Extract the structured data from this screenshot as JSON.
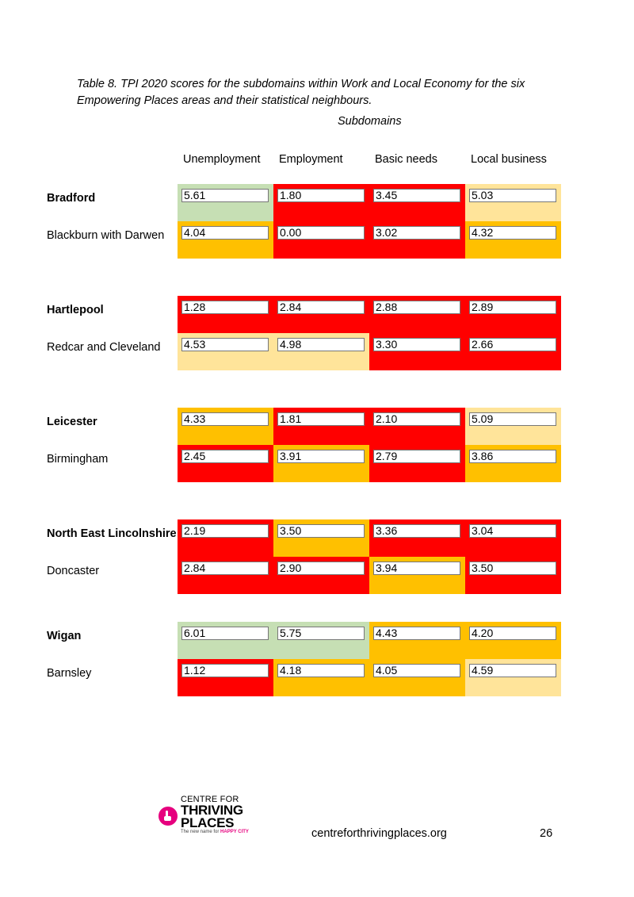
{
  "caption": "Table 8. TPI 2020 scores for the subdomains within Work and Local Economy for the six Empowering Places areas and their statistical neighbours.",
  "subdomains_label": "Subdomains",
  "columns": [
    "Unemployment",
    "Employment",
    "Basic needs",
    "Local business"
  ],
  "colors": {
    "green": "#c6dfb4",
    "red": "#ff0000",
    "orange": "#ffc000",
    "light_yellow": "#ffe49a"
  },
  "rows": [
    {
      "name": "Bradford",
      "bold": true,
      "values": [
        "5.61",
        "1.80",
        "3.45",
        "5.03"
      ],
      "colors": [
        "green",
        "red",
        "red",
        "light_yellow"
      ]
    },
    {
      "name": "Blackburn with Darwen",
      "bold": false,
      "values": [
        "4.04",
        "0.00",
        "3.02",
        "4.32"
      ],
      "colors": [
        "orange",
        "red",
        "red",
        "orange"
      ]
    },
    {
      "name": "Hartlepool",
      "bold": true,
      "values": [
        "1.28",
        "2.84",
        "2.88",
        "2.89"
      ],
      "colors": [
        "red",
        "red",
        "red",
        "red"
      ]
    },
    {
      "name": "Redcar and Cleveland",
      "bold": false,
      "values": [
        "4.53",
        "4.98",
        "3.30",
        "2.66"
      ],
      "colors": [
        "light_yellow",
        "light_yellow",
        "red",
        "red"
      ]
    },
    {
      "name": "Leicester",
      "bold": true,
      "values": [
        "4.33",
        "1.81",
        "2.10",
        "5.09"
      ],
      "colors": [
        "orange",
        "red",
        "red",
        "light_yellow"
      ]
    },
    {
      "name": "Birmingham",
      "bold": false,
      "values": [
        "2.45",
        "3.91",
        "2.79",
        "3.86"
      ],
      "colors": [
        "red",
        "orange",
        "red",
        "orange"
      ]
    },
    {
      "name": "North East Lincolnshire",
      "bold": true,
      "values": [
        "2.19",
        "3.50",
        "3.36",
        "3.04"
      ],
      "colors": [
        "red",
        "orange",
        "red",
        "red"
      ]
    },
    {
      "name": "Doncaster",
      "bold": false,
      "values": [
        "2.84",
        "2.90",
        "3.94",
        "3.50"
      ],
      "colors": [
        "red",
        "red",
        "orange",
        "red"
      ]
    },
    {
      "name": "Wigan",
      "bold": true,
      "values": [
        "6.01",
        "5.75",
        "4.43",
        "4.20"
      ],
      "colors": [
        "green",
        "green",
        "orange",
        "orange"
      ]
    },
    {
      "name": "Barnsley",
      "bold": false,
      "values": [
        "1.12",
        "4.18",
        "4.05",
        "4.59"
      ],
      "colors": [
        "red",
        "orange",
        "orange",
        "light_yellow"
      ]
    }
  ],
  "logo": {
    "line1": "CENTRE FOR",
    "line2": "THRIVING",
    "line3": "PLACES",
    "tagline_prefix": "The new name for",
    "tagline_brand": "HAPPY CITY",
    "icon": "raised-hand-icon",
    "color": "#e6007e"
  },
  "footer": {
    "url": "centreforthrivingplaces.org",
    "page": "26"
  }
}
